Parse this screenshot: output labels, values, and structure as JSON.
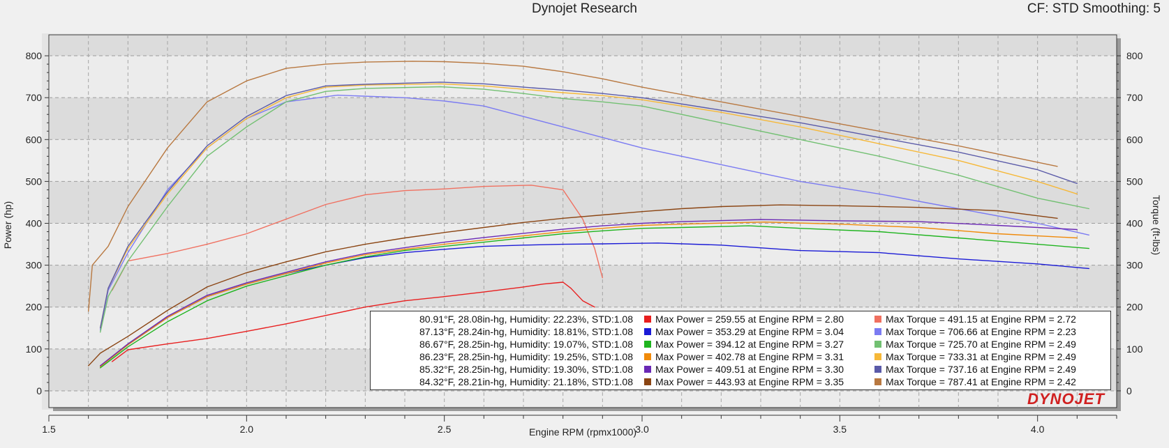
{
  "header": {
    "title": "Dynojet Research",
    "correction": "CF: STD Smoothing: 5"
  },
  "logo_text": "DYNOJET",
  "chart_data": {
    "type": "line",
    "title": "Dynojet Research",
    "xlabel": "Engine RPM (rpmx1000)",
    "ylabel_left": "Power (hp)",
    "ylabel_right": "Torque (ft-lbs)",
    "xlim": [
      1.5,
      4.2
    ],
    "ylim": [
      -40,
      850
    ],
    "xticks": [
      "1.5",
      "2.0",
      "2.5",
      "3.0",
      "3.5",
      "4.0"
    ],
    "yticks": [
      "0",
      "100",
      "200",
      "300",
      "400",
      "500",
      "600",
      "700",
      "800"
    ],
    "grid": true,
    "legend_position": "bottom-right",
    "runs": [
      {
        "conditions": "80.91°F, 28.08in-hg, Humidity: 22.23%, STD:1.08",
        "power_label": "Max Power = 259.55 at Engine RPM = 2.80",
        "torque_label": "Max Torque = 491.15 at Engine RPM = 2.72",
        "power_color": "#e81e1e",
        "torque_color": "#f07060",
        "power": [
          [
            1.66,
            70
          ],
          [
            1.7,
            98
          ],
          [
            1.8,
            112
          ],
          [
            1.9,
            125
          ],
          [
            2.0,
            142
          ],
          [
            2.1,
            160
          ],
          [
            2.2,
            180
          ],
          [
            2.3,
            200
          ],
          [
            2.4,
            215
          ],
          [
            2.5,
            225
          ],
          [
            2.6,
            236
          ],
          [
            2.7,
            248
          ],
          [
            2.75,
            255
          ],
          [
            2.8,
            259.5
          ],
          [
            2.82,
            245
          ],
          [
            2.85,
            215
          ],
          [
            2.88,
            200
          ]
        ],
        "torque": [
          [
            1.66,
            240
          ],
          [
            1.7,
            310
          ],
          [
            1.8,
            328
          ],
          [
            1.9,
            350
          ],
          [
            2.0,
            375
          ],
          [
            2.1,
            410
          ],
          [
            2.2,
            445
          ],
          [
            2.3,
            468
          ],
          [
            2.4,
            478
          ],
          [
            2.5,
            482
          ],
          [
            2.6,
            488
          ],
          [
            2.72,
            491
          ],
          [
            2.8,
            480
          ],
          [
            2.85,
            410
          ],
          [
            2.88,
            340
          ],
          [
            2.9,
            270
          ]
        ]
      },
      {
        "conditions": "87.13°F, 28.24in-hg, Humidity: 18.81%, STD:1.08",
        "power_label": "Max Power = 353.29 at Engine RPM = 3.04",
        "torque_label": "Max Torque = 706.66 at Engine RPM = 2.23",
        "power_color": "#1a1ad6",
        "torque_color": "#7b7bf2",
        "power": [
          [
            1.63,
            58
          ],
          [
            1.7,
            110
          ],
          [
            1.8,
            175
          ],
          [
            1.9,
            225
          ],
          [
            2.0,
            255
          ],
          [
            2.1,
            280
          ],
          [
            2.2,
            300
          ],
          [
            2.3,
            318
          ],
          [
            2.4,
            330
          ],
          [
            2.5,
            338
          ],
          [
            2.6,
            345
          ],
          [
            2.7,
            348
          ],
          [
            2.8,
            350
          ],
          [
            2.9,
            351
          ],
          [
            3.04,
            353
          ],
          [
            3.2,
            348
          ],
          [
            3.4,
            335
          ],
          [
            3.6,
            330
          ],
          [
            3.8,
            315
          ],
          [
            4.0,
            303
          ],
          [
            4.13,
            292
          ]
        ],
        "torque": [
          [
            1.63,
            145
          ],
          [
            1.65,
            240
          ],
          [
            1.7,
            330
          ],
          [
            1.8,
            480
          ],
          [
            1.9,
            580
          ],
          [
            2.0,
            650
          ],
          [
            2.1,
            690
          ],
          [
            2.23,
            706
          ],
          [
            2.4,
            700
          ],
          [
            2.5,
            692
          ],
          [
            2.6,
            680
          ],
          [
            2.7,
            655
          ],
          [
            2.8,
            630
          ],
          [
            2.9,
            605
          ],
          [
            3.0,
            580
          ],
          [
            3.2,
            540
          ],
          [
            3.4,
            500
          ],
          [
            3.6,
            470
          ],
          [
            3.8,
            435
          ],
          [
            4.0,
            400
          ],
          [
            4.13,
            372
          ]
        ]
      },
      {
        "conditions": "86.67°F, 28.25in-hg, Humidity: 19.07%, STD:1.08",
        "power_label": "Max Power = 394.12 at Engine RPM = 3.27",
        "torque_label": "Max Torque = 725.70 at Engine RPM = 2.49",
        "power_color": "#1eb41e",
        "torque_color": "#72c072",
        "power": [
          [
            1.63,
            55
          ],
          [
            1.7,
            105
          ],
          [
            1.8,
            165
          ],
          [
            1.9,
            215
          ],
          [
            2.0,
            250
          ],
          [
            2.1,
            275
          ],
          [
            2.2,
            300
          ],
          [
            2.3,
            320
          ],
          [
            2.4,
            335
          ],
          [
            2.5,
            345
          ],
          [
            2.6,
            355
          ],
          [
            2.7,
            365
          ],
          [
            2.8,
            375
          ],
          [
            2.9,
            382
          ],
          [
            3.0,
            388
          ],
          [
            3.1,
            390
          ],
          [
            3.27,
            394
          ],
          [
            3.4,
            388
          ],
          [
            3.6,
            380
          ],
          [
            3.8,
            365
          ],
          [
            4.0,
            350
          ],
          [
            4.13,
            340
          ]
        ],
        "torque": [
          [
            1.63,
            140
          ],
          [
            1.65,
            225
          ],
          [
            1.7,
            310
          ],
          [
            1.8,
            440
          ],
          [
            1.9,
            560
          ],
          [
            2.0,
            630
          ],
          [
            2.1,
            690
          ],
          [
            2.2,
            715
          ],
          [
            2.3,
            722
          ],
          [
            2.49,
            726
          ],
          [
            2.6,
            720
          ],
          [
            2.7,
            710
          ],
          [
            2.8,
            698
          ],
          [
            2.9,
            690
          ],
          [
            3.0,
            680
          ],
          [
            3.2,
            640
          ],
          [
            3.4,
            600
          ],
          [
            3.6,
            560
          ],
          [
            3.8,
            515
          ],
          [
            4.0,
            460
          ],
          [
            4.13,
            435
          ]
        ]
      },
      {
        "conditions": "86.23°F, 28.25in-hg, Humidity: 19.25%, STD:1.08",
        "power_label": "Max Power = 402.78 at Engine RPM = 3.31",
        "torque_label": "Max Torque = 733.31 at Engine RPM = 2.49",
        "power_color": "#f08a0a",
        "torque_color": "#f6b838",
        "power": [
          [
            1.63,
            58
          ],
          [
            1.7,
            110
          ],
          [
            1.8,
            175
          ],
          [
            1.9,
            225
          ],
          [
            2.0,
            255
          ],
          [
            2.1,
            280
          ],
          [
            2.2,
            305
          ],
          [
            2.3,
            325
          ],
          [
            2.4,
            338
          ],
          [
            2.5,
            350
          ],
          [
            2.6,
            360
          ],
          [
            2.7,
            370
          ],
          [
            2.8,
            380
          ],
          [
            2.9,
            388
          ],
          [
            3.0,
            395
          ],
          [
            3.1,
            398
          ],
          [
            3.31,
            403
          ],
          [
            3.5,
            398
          ],
          [
            3.7,
            390
          ],
          [
            3.9,
            375
          ],
          [
            4.1,
            365
          ]
        ],
        "torque": [
          [
            1.63,
            150
          ],
          [
            1.65,
            245
          ],
          [
            1.7,
            340
          ],
          [
            1.8,
            470
          ],
          [
            1.9,
            580
          ],
          [
            2.0,
            650
          ],
          [
            2.1,
            700
          ],
          [
            2.2,
            725
          ],
          [
            2.3,
            730
          ],
          [
            2.49,
            733
          ],
          [
            2.6,
            728
          ],
          [
            2.7,
            720
          ],
          [
            2.8,
            712
          ],
          [
            2.9,
            705
          ],
          [
            3.0,
            695
          ],
          [
            3.2,
            665
          ],
          [
            3.4,
            630
          ],
          [
            3.6,
            590
          ],
          [
            3.8,
            550
          ],
          [
            4.0,
            500
          ],
          [
            4.1,
            470
          ]
        ]
      },
      {
        "conditions": "85.32°F, 28.25in-hg, Humidity: 19.30%, STD:1.08",
        "power_label": "Max Power = 409.51 at Engine RPM = 3.30",
        "torque_label": "Max Torque = 737.16 at Engine RPM = 2.49",
        "power_color": "#6a28b4",
        "torque_color": "#5a5aa8",
        "power": [
          [
            1.63,
            60
          ],
          [
            1.7,
            112
          ],
          [
            1.8,
            178
          ],
          [
            1.9,
            228
          ],
          [
            2.0,
            258
          ],
          [
            2.1,
            283
          ],
          [
            2.2,
            308
          ],
          [
            2.3,
            328
          ],
          [
            2.4,
            342
          ],
          [
            2.5,
            355
          ],
          [
            2.6,
            366
          ],
          [
            2.7,
            376
          ],
          [
            2.8,
            386
          ],
          [
            2.9,
            394
          ],
          [
            3.0,
            400
          ],
          [
            3.1,
            404
          ],
          [
            3.3,
            409
          ],
          [
            3.5,
            406
          ],
          [
            3.7,
            404
          ],
          [
            3.9,
            395
          ],
          [
            4.1,
            385
          ]
        ],
        "torque": [
          [
            1.63,
            150
          ],
          [
            1.65,
            245
          ],
          [
            1.7,
            345
          ],
          [
            1.8,
            475
          ],
          [
            1.9,
            585
          ],
          [
            2.0,
            655
          ],
          [
            2.1,
            705
          ],
          [
            2.2,
            728
          ],
          [
            2.3,
            732
          ],
          [
            2.49,
            737
          ],
          [
            2.6,
            733
          ],
          [
            2.7,
            725
          ],
          [
            2.8,
            718
          ],
          [
            2.9,
            710
          ],
          [
            3.0,
            700
          ],
          [
            3.2,
            670
          ],
          [
            3.4,
            640
          ],
          [
            3.6,
            605
          ],
          [
            3.8,
            570
          ],
          [
            4.0,
            528
          ],
          [
            4.1,
            495
          ]
        ]
      },
      {
        "conditions": "84.32°F, 28.21in-hg, Humidity: 21.18%, STD:1.08",
        "power_label": "Max Power = 443.93 at Engine RPM = 3.35",
        "torque_label": "Max Torque = 787.41 at Engine RPM = 2.42",
        "power_color": "#8b4513",
        "torque_color": "#b87840",
        "power": [
          [
            1.6,
            60
          ],
          [
            1.63,
            90
          ],
          [
            1.7,
            130
          ],
          [
            1.8,
            192
          ],
          [
            1.9,
            248
          ],
          [
            2.0,
            282
          ],
          [
            2.1,
            308
          ],
          [
            2.2,
            332
          ],
          [
            2.3,
            350
          ],
          [
            2.4,
            365
          ],
          [
            2.5,
            378
          ],
          [
            2.6,
            390
          ],
          [
            2.7,
            402
          ],
          [
            2.8,
            412
          ],
          [
            2.9,
            420
          ],
          [
            3.0,
            428
          ],
          [
            3.1,
            435
          ],
          [
            3.2,
            440
          ],
          [
            3.35,
            444
          ],
          [
            3.5,
            442
          ],
          [
            3.7,
            438
          ],
          [
            3.9,
            430
          ],
          [
            4.05,
            412
          ]
        ],
        "torque": [
          [
            1.6,
            190
          ],
          [
            1.61,
            300
          ],
          [
            1.65,
            345
          ],
          [
            1.7,
            440
          ],
          [
            1.8,
            580
          ],
          [
            1.9,
            690
          ],
          [
            2.0,
            740
          ],
          [
            2.1,
            770
          ],
          [
            2.2,
            780
          ],
          [
            2.3,
            785
          ],
          [
            2.42,
            787
          ],
          [
            2.5,
            786
          ],
          [
            2.6,
            782
          ],
          [
            2.7,
            775
          ],
          [
            2.8,
            762
          ],
          [
            2.9,
            745
          ],
          [
            3.0,
            725
          ],
          [
            3.2,
            690
          ],
          [
            3.4,
            655
          ],
          [
            3.6,
            620
          ],
          [
            3.8,
            585
          ],
          [
            4.05,
            536
          ]
        ]
      }
    ]
  }
}
